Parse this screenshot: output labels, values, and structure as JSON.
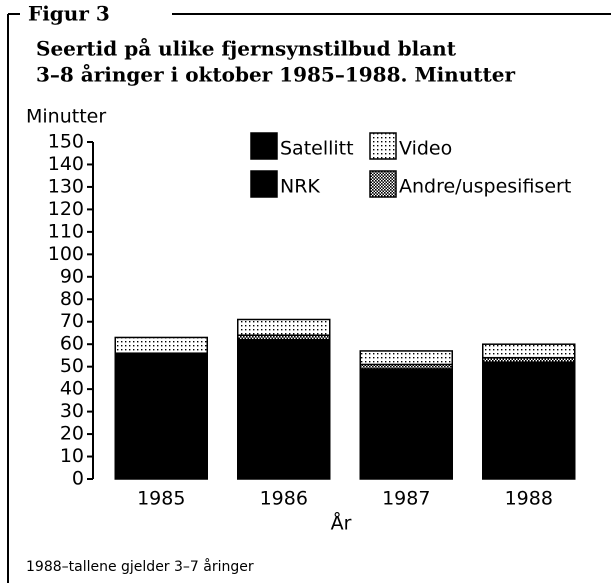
{
  "chart_data": {
    "type": "stacked-bar",
    "figure_label": "Figur 3",
    "title": [
      "Seertid på ulike fjernsynstilbud blant",
      "3–8 åringer i oktober 1985–1988. Minutter"
    ],
    "y_label": "Minutter",
    "x_label": "År",
    "note": "1988–tallene gjelder 3–7 åringer",
    "categories": [
      "1985",
      "1986",
      "1987",
      "1988"
    ],
    "series": [
      {
        "name": "NRK",
        "color": "#000000",
        "pattern": "solid",
        "values": [
          56,
          62,
          49,
          52
        ]
      },
      {
        "name": "Satellitt",
        "color": "#000000",
        "pattern": "solid",
        "values": [
          0,
          0,
          0,
          0
        ]
      },
      {
        "name": "Andre/uspesifisert",
        "color": "#000000",
        "pattern": "dense-dots",
        "values": [
          0,
          2,
          2,
          2
        ]
      },
      {
        "name": "Video",
        "color": "#000000",
        "pattern": "dots",
        "values": [
          7,
          7,
          6,
          6
        ]
      }
    ],
    "ylim": [
      0,
      150
    ],
    "yticks": [
      0,
      10,
      20,
      30,
      40,
      50,
      60,
      70,
      80,
      90,
      100,
      110,
      120,
      130,
      140,
      150
    ]
  }
}
